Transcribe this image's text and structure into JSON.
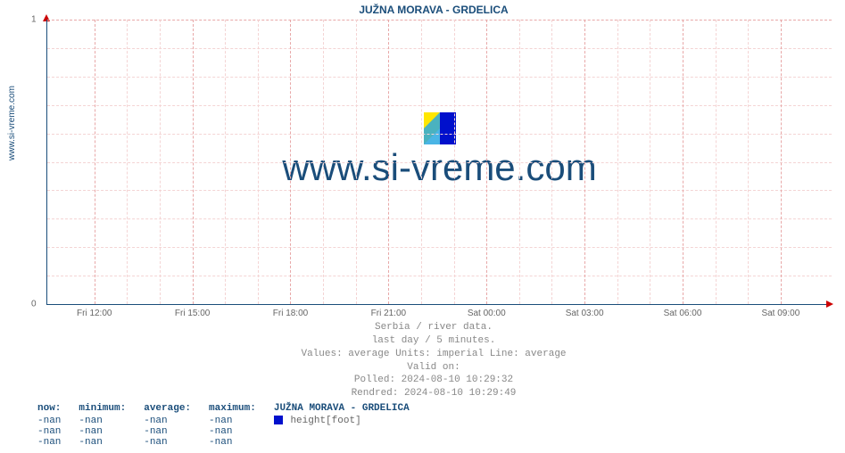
{
  "vertical_label": "www.si-vreme.com",
  "chart": {
    "type": "line",
    "title": "JUŽNA MORAVA -  GRDELICA",
    "background_color": "#ffffff",
    "axis_color": "#1a4d7a",
    "arrow_color": "#cc0000",
    "grid_major_color": "#e8a8a8",
    "grid_minor_color": "#f4d4d4",
    "title_fontsize": 12,
    "tick_fontsize": 10,
    "ylim": [
      0,
      1
    ],
    "yticks": [
      {
        "pos": 0,
        "label": "0"
      },
      {
        "pos": 1,
        "label": "1"
      }
    ],
    "xticks": [
      {
        "pos_pct": 6.0,
        "label": "Fri 12:00"
      },
      {
        "pos_pct": 18.5,
        "label": "Fri 15:00"
      },
      {
        "pos_pct": 31.0,
        "label": "Fri 18:00"
      },
      {
        "pos_pct": 43.5,
        "label": "Fri 21:00"
      },
      {
        "pos_pct": 56.0,
        "label": "Sat 00:00"
      },
      {
        "pos_pct": 68.5,
        "label": "Sat 03:00"
      },
      {
        "pos_pct": 81.0,
        "label": "Sat 06:00"
      },
      {
        "pos_pct": 93.5,
        "label": "Sat 09:00"
      }
    ],
    "watermark_text": "www.si-vreme.com",
    "watermark_color": "#1a4d7a",
    "watermark_fontsize": 42,
    "watermark_icon_colors": {
      "top_left": "#ffe600",
      "bottom_left": "#2aa8e0",
      "right": "#0010cc"
    },
    "series": []
  },
  "meta": {
    "line1": "Serbia / river data.",
    "line2": "last day / 5 minutes.",
    "line3": "Values: average  Units: imperial  Line: average",
    "line4": "Valid on:",
    "line5": "Polled: 2024-08-10 10:29:32",
    "line6": "Rendred: 2024-08-10 10:29:49"
  },
  "stats": {
    "headers": {
      "now": "now:",
      "min": "minimum:",
      "avg": "average:",
      "max": "maximum:"
    },
    "series_label": "JUŽNA MORAVA -  GRDELICA",
    "legend_color": "#0010cc",
    "legend_unit": "height[foot]",
    "rows": [
      {
        "now": "-nan",
        "min": "-nan",
        "avg": "-nan",
        "max": "-nan"
      },
      {
        "now": "-nan",
        "min": "-nan",
        "avg": "-nan",
        "max": "-nan"
      },
      {
        "now": "-nan",
        "min": "-nan",
        "avg": "-nan",
        "max": "-nan"
      }
    ]
  }
}
